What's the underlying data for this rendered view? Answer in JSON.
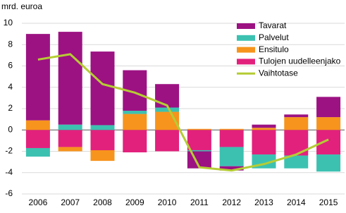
{
  "chart_data": {
    "type": "stacked-bar-line",
    "y_label": "mrd. euroa",
    "categories": [
      "2006",
      "2007",
      "2008",
      "2009",
      "2010",
      "2011",
      "2012",
      "2013",
      "2014",
      "2015"
    ],
    "series": [
      {
        "name": "Tavarat",
        "color": "#9c1283",
        "kind": "bar",
        "values": [
          8.1,
          8.7,
          6.9,
          3.8,
          2.2,
          -1.6,
          -0.4,
          0.3,
          0.25,
          1.9
        ]
      },
      {
        "name": "Palvelut",
        "color": "#3cc1b1",
        "kind": "bar",
        "values": [
          -0.8,
          0.5,
          0.45,
          0.3,
          0.4,
          -0.1,
          -1.8,
          -1.3,
          -1.2,
          -1.6
        ]
      },
      {
        "name": "Ensitulo",
        "color": "#f7941d",
        "kind": "bar",
        "values": [
          0.9,
          -0.4,
          -1.0,
          1.5,
          1.7,
          0.1,
          0.1,
          0.2,
          1.2,
          1.2
        ]
      },
      {
        "name": "Tulojen uudelleenjako",
        "color": "#e2217d",
        "kind": "bar",
        "values": [
          -1.7,
          -1.6,
          -1.9,
          -2.1,
          -2.0,
          -1.9,
          -1.6,
          -2.3,
          -2.4,
          -2.3
        ]
      },
      {
        "name": "Vaihtotase",
        "color": "#b5cc34",
        "kind": "line",
        "values": [
          6.6,
          7.1,
          4.3,
          3.5,
          2.3,
          -3.5,
          -3.8,
          -3.2,
          -2.3,
          -0.9
        ]
      }
    ],
    "stack_order": [
      3,
      2,
      1,
      0
    ],
    "ylim": [
      -6,
      10
    ],
    "yticks": [
      -6,
      -4,
      -2,
      0,
      2,
      4,
      6,
      8,
      10
    ],
    "grid": true,
    "legend": "top-right"
  }
}
